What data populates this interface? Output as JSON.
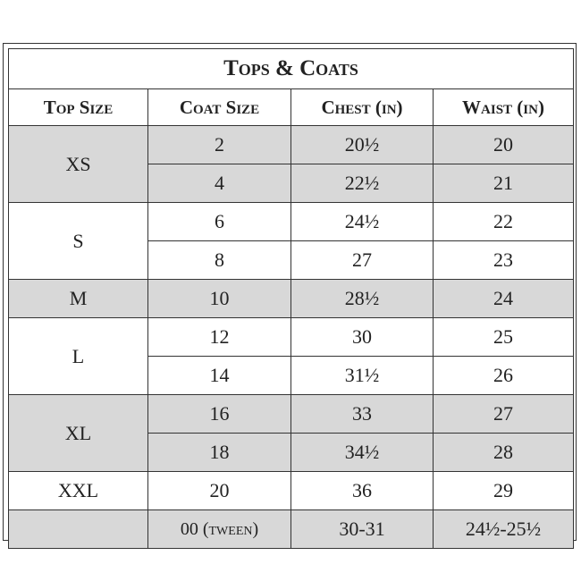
{
  "header": {
    "title": "Tops & Coats"
  },
  "columns": [
    "Top Size",
    "Coat Size",
    "Chest (in)",
    "Waist (in)"
  ],
  "groups": [
    {
      "top_size": "XS",
      "rows": [
        [
          "2",
          "20½",
          "20"
        ],
        [
          "4",
          "22½",
          "21"
        ]
      ]
    },
    {
      "top_size": "S",
      "rows": [
        [
          "6",
          "24½",
          "22"
        ],
        [
          "8",
          "27",
          "23"
        ]
      ]
    },
    {
      "top_size": "M",
      "rows": [
        [
          "10",
          "28½",
          "24"
        ]
      ]
    },
    {
      "top_size": "L",
      "rows": [
        [
          "12",
          "30",
          "25"
        ],
        [
          "14",
          "31½",
          "26"
        ]
      ]
    },
    {
      "top_size": "XL",
      "rows": [
        [
          "16",
          "33",
          "27"
        ],
        [
          "18",
          "34½",
          "28"
        ]
      ]
    },
    {
      "top_size": "XXL",
      "rows": [
        [
          "20",
          "36",
          "29"
        ]
      ]
    },
    {
      "rows": [
        [
          "00 (tween)",
          "30-31",
          "24½-25½"
        ]
      ]
    }
  ]
}
